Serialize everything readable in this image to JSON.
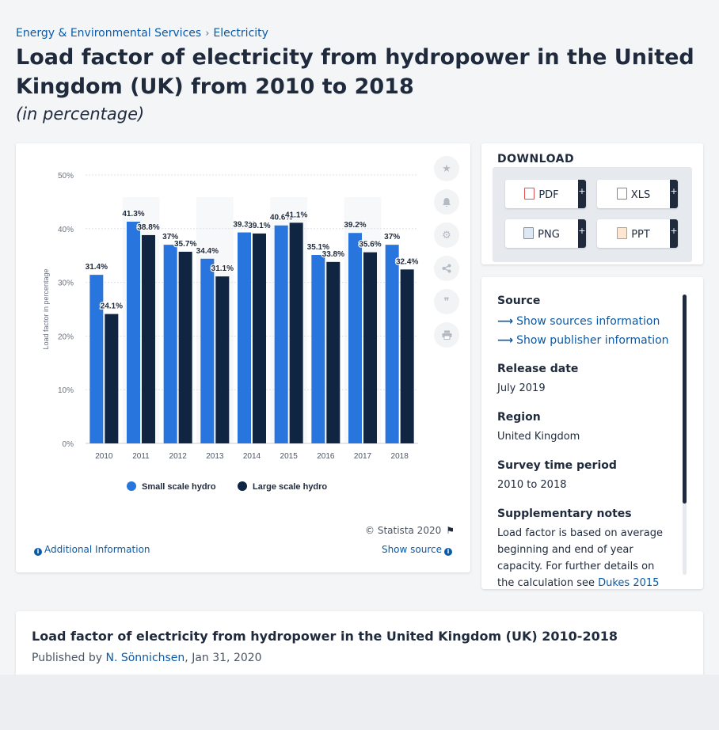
{
  "breadcrumbs": [
    "Energy & Environmental Services",
    "Electricity"
  ],
  "breadcrumb_sep": "›",
  "title": "Load factor of electricity from hydropower in the United Kingdom (UK) from 2010 to 2018",
  "subtitle": "(in percentage)",
  "chart_data": {
    "type": "bar",
    "categories": [
      "2010",
      "2011",
      "2012",
      "2013",
      "2014",
      "2015",
      "2016",
      "2017",
      "2018"
    ],
    "series": [
      {
        "name": "Small scale hydro",
        "values": [
          31.4,
          41.3,
          37.0,
          34.4,
          39.3,
          40.6,
          35.1,
          39.2,
          37.0
        ],
        "labels": [
          "31.4%",
          "41.3%",
          "37%",
          "34.4%",
          "39.3%",
          "40.6%",
          "35.1%",
          "39.2%",
          "37%"
        ],
        "color": "#2876dd"
      },
      {
        "name": "Large scale hydro",
        "values": [
          24.1,
          38.8,
          35.7,
          31.1,
          39.1,
          41.1,
          33.8,
          35.6,
          32.4
        ],
        "labels": [
          "24.1%",
          "38.8%",
          "35.7%",
          "31.1%",
          "39.1%",
          "41.1%",
          "33.8%",
          "35.6%",
          "32.4%"
        ],
        "color": "#0f2541"
      }
    ],
    "ylabel": "Load factor in percentage",
    "yticks": [
      "0%",
      "10%",
      "20%",
      "30%",
      "40%",
      "50%"
    ],
    "ylim": [
      0,
      50
    ],
    "grid": true,
    "legend_position": "bottom"
  },
  "tools": [
    "star-icon",
    "bell-icon",
    "gear-icon",
    "share-icon",
    "quote-icon",
    "print-icon"
  ],
  "copyright": "© Statista 2020",
  "additional_info": "Additional Information",
  "show_source": "Show source",
  "download": {
    "title": "DOWNLOAD",
    "buttons": [
      {
        "label": "PDF",
        "icon": "pdf-icon",
        "color": "#e05252"
      },
      {
        "label": "XLS",
        "icon": "xls-icon",
        "color": "#4caf50"
      },
      {
        "label": "PNG",
        "icon": "png-icon",
        "color": "#5b9bd5"
      },
      {
        "label": "PPT",
        "icon": "ppt-icon",
        "color": "#f0932b"
      }
    ],
    "plus": "+"
  },
  "info": {
    "source_h": "Source",
    "source_links": [
      "Show sources information",
      "Show publisher information"
    ],
    "release_h": "Release date",
    "release_v": "July 2019",
    "region_h": "Region",
    "region_v": "United Kingdom",
    "period_h": "Survey time period",
    "period_v": "2010 to 2018",
    "notes_h": "Supplementary notes",
    "notes_v": "Load factor is based on average beginning and end of year capacity. For further details on the calculation see",
    "notes_link": "Dukes 2015"
  },
  "publication": {
    "title": "Load factor of electricity from hydropower in the United Kingdom (UK) 2010-2018",
    "by": "Published by",
    "author": "N. Sönnichsen",
    "date": ", Jan 31, 2020"
  }
}
